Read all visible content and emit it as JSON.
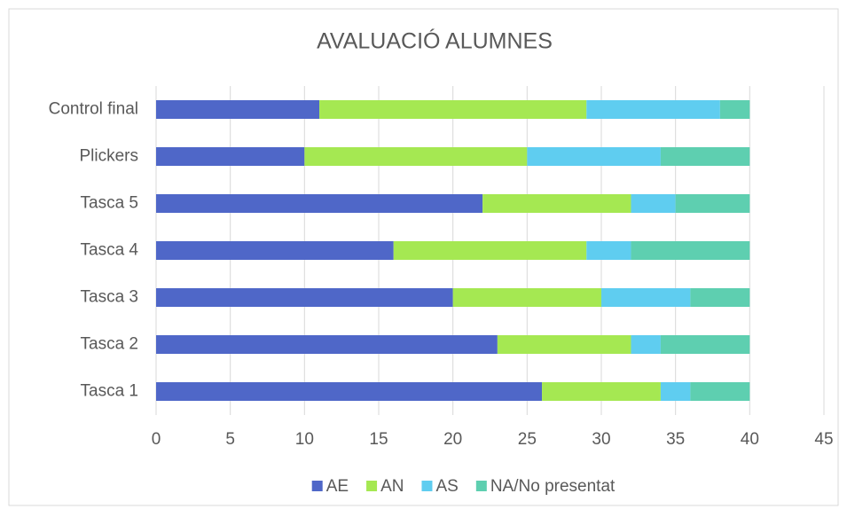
{
  "chart_data": {
    "type": "stacked_bar_horizontal",
    "title": "AVALUACIÓ ALUMNES",
    "categories": [
      "Tasca 1",
      "Tasca 2",
      "Tasca 3",
      "Tasca 4",
      "Tasca 5",
      "Plickers",
      "Control final"
    ],
    "series": [
      {
        "name": "AE",
        "color": "#4f67c8",
        "values": [
          26,
          23,
          20,
          16,
          22,
          10,
          11
        ]
      },
      {
        "name": "AN",
        "color": "#a5e852",
        "values": [
          8,
          9,
          10,
          13,
          10,
          15,
          18
        ]
      },
      {
        "name": "AS",
        "color": "#5fcdf0",
        "values": [
          2,
          2,
          6,
          3,
          3,
          9,
          9
        ]
      },
      {
        "name": "NA/No presentat",
        "color": "#5ecfb0",
        "values": [
          4,
          6,
          4,
          8,
          5,
          6,
          2
        ]
      }
    ],
    "xlim": [
      0,
      45
    ],
    "xticks": [
      0,
      5,
      10,
      15,
      20,
      25,
      30,
      35,
      40,
      45
    ],
    "grid": true,
    "legend": "bottom"
  }
}
